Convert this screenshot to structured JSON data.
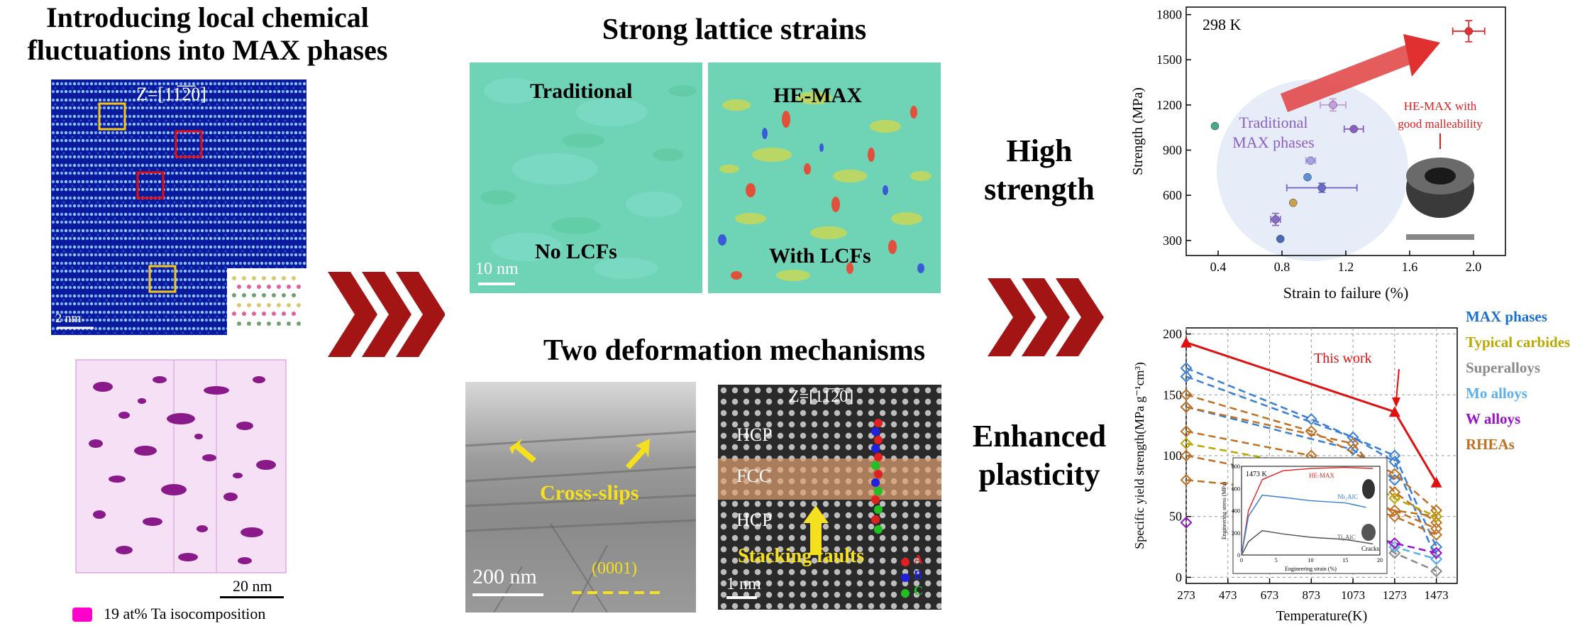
{
  "left": {
    "title_line1": "Introducing local chemical",
    "title_line2": "fluctuations into MAX phases",
    "zone_axis": "Z=[11̅2̅0]",
    "scale_2nm": "2 nm",
    "scale_20nm": "20 nm",
    "iso_legend": "19 at% Ta isocomposition",
    "colors": {
      "blue_bg": "#0a1a9c",
      "yellow_box": "#f5c518",
      "red_box": "#e01010",
      "iso_purple": "#8a1a8a",
      "magenta": "#ff00cc"
    }
  },
  "middle": {
    "strain_title": "Strong lattice strains",
    "traditional_label": "Traditional",
    "no_lcfs_label": "No LCFs",
    "hemax_label": "HE-MAX",
    "with_lcfs_label": "With LCFs",
    "scale_10nm": "10 nm",
    "deform_title": "Two deformation mechanisms",
    "cross_slips": "Cross-slips",
    "plane_0001": "(0001)",
    "scale_200nm": "200 nm",
    "zone_axis2": "Z=[11̅2̅0]",
    "hcp_top": "HCP",
    "fcc": "FCC",
    "hcp_bottom": "HCP",
    "stacking_faults": "Stacking faults",
    "scale_1nm": "1 nm",
    "legend_A": "A",
    "legend_B": "B",
    "legend_C": "C"
  },
  "arrows": {
    "color": "#a31515"
  },
  "right_text": {
    "high_line1": "High",
    "high_line2": "strength",
    "enh_line1": "Enhanced",
    "enh_line2": "plasticity"
  },
  "chart_data": [
    {
      "type": "scatter",
      "annotation_temp": "298 K",
      "xlabel": "Strain to failure (%)",
      "ylabel": "Strength (MPa)",
      "xlim": [
        0.2,
        2.2
      ],
      "ylim": [
        200,
        1850
      ],
      "xticks": [
        "0.4",
        "0.8",
        "1.2",
        "1.6",
        "2.0"
      ],
      "yticks": [
        "300",
        "600",
        "900",
        "1200",
        "1500",
        "1800"
      ],
      "traditional_label_line1": "Traditional",
      "traditional_label_line2": "MAX phases",
      "hemax_label_line1": "HE-MAX with",
      "hemax_label_line2": "good malleability",
      "points": [
        {
          "x": 0.38,
          "y": 1060,
          "color": "#4aa88a",
          "xerr": 0,
          "yerr": 0
        },
        {
          "x": 1.12,
          "y": 1200,
          "color": "#c79be0",
          "xerr": 0.08,
          "yerr": 40
        },
        {
          "x": 1.25,
          "y": 1040,
          "color": "#8a5fc2",
          "xerr": 0.06,
          "yerr": 0
        },
        {
          "x": 0.98,
          "y": 830,
          "color": "#a9a0e8",
          "xerr": 0.03,
          "yerr": 0
        },
        {
          "x": 0.96,
          "y": 720,
          "color": "#5b8fd8",
          "xerr": 0,
          "yerr": 0
        },
        {
          "x": 1.05,
          "y": 650,
          "color": "#6a6ac8",
          "xerr": 0.22,
          "yerr": 30
        },
        {
          "x": 0.87,
          "y": 550,
          "color": "#c8a050",
          "xerr": 0,
          "yerr": 0
        },
        {
          "x": 0.76,
          "y": 440,
          "color": "#8a6ac8",
          "xerr": 0.03,
          "yerr": 40
        },
        {
          "x": 0.79,
          "y": 310,
          "color": "#4a6ab8",
          "xerr": 0,
          "yerr": 0
        },
        {
          "x": 1.97,
          "y": 1690,
          "color": "#e03030",
          "xerr": 0.1,
          "yerr": 70
        }
      ]
    },
    {
      "type": "line",
      "xlabel": "Temperature(K)",
      "ylabel": "Specific yield strength(MPa g⁻¹cm³)",
      "xlim": [
        273,
        1573
      ],
      "ylim": [
        -5,
        205
      ],
      "xticks": [
        "273",
        "473",
        "673",
        "873",
        "1073",
        "1273",
        "1473"
      ],
      "yticks": [
        "0",
        "50",
        "100",
        "150",
        "200"
      ],
      "this_work_label": "This work",
      "legend": [
        {
          "name": "MAX phases",
          "color": "#1a6fd6"
        },
        {
          "name": "Typical carbides",
          "color": "#b8a800"
        },
        {
          "name": "Superalloys",
          "color": "#8a8a8a"
        },
        {
          "name": "Mo alloys",
          "color": "#5ab0e8"
        },
        {
          "name": "W alloys",
          "color": "#9a10c8"
        },
        {
          "name": "RHEAs",
          "color": "#c07020"
        }
      ],
      "this_work": {
        "x": [
          273,
          1273,
          1473
        ],
        "y": [
          193,
          136,
          78
        ],
        "color": "#e01010"
      },
      "series": [
        {
          "color": "#3a7fd6",
          "x": [
            273,
            873,
            1273,
            1473
          ],
          "y": [
            172,
            130,
            100,
            25
          ]
        },
        {
          "color": "#3a7fd6",
          "x": [
            273,
            1073,
            1273,
            1473
          ],
          "y": [
            165,
            115,
            95,
            15
          ]
        },
        {
          "color": "#3a7fd6",
          "x": [
            273,
            1073,
            1273
          ],
          "y": [
            140,
            105,
            80
          ]
        },
        {
          "color": "#c07020",
          "x": [
            273,
            873,
            1273,
            1473
          ],
          "y": [
            150,
            120,
            85,
            55
          ]
        },
        {
          "color": "#c07020",
          "x": [
            273,
            1073,
            1273,
            1473
          ],
          "y": [
            140,
            110,
            70,
            45
          ]
        },
        {
          "color": "#c07020",
          "x": [
            273,
            873,
            1073,
            1473
          ],
          "y": [
            120,
            100,
            60,
            50
          ]
        },
        {
          "color": "#c07020",
          "x": [
            273,
            873,
            1073,
            1273,
            1473
          ],
          "y": [
            100,
            80,
            65,
            55,
            40
          ]
        },
        {
          "color": "#c07020",
          "x": [
            273,
            873,
            1273,
            1473
          ],
          "y": [
            80,
            70,
            50,
            35
          ]
        },
        {
          "color": "#b8a800",
          "x": [
            273,
            1073,
            1273,
            1473
          ],
          "y": [
            110,
            85,
            65,
            50
          ]
        },
        {
          "color": "#8a8a8a",
          "x": [
            873,
            1073,
            1273,
            1473
          ],
          "y": [
            75,
            45,
            20,
            5
          ]
        },
        {
          "color": "#5ab0e8",
          "x": [
            1073,
            1273,
            1473
          ],
          "y": [
            45,
            25,
            15
          ]
        },
        {
          "color": "#9a10c8",
          "x": [
            1073,
            1273,
            1473
          ],
          "y": [
            38,
            28,
            20
          ]
        },
        {
          "color": "#9a10c8",
          "x": [
            273
          ],
          "y": [
            45
          ]
        }
      ],
      "inset": {
        "temp": "1473 K",
        "xlabel": "Engineering strain (%)",
        "ylabel": "Engineering stress (MPa)",
        "xticks": [
          "0",
          "5",
          "10",
          "15",
          "20"
        ],
        "yticks": [
          "0",
          "200",
          "400",
          "600",
          "800"
        ],
        "series": [
          {
            "name": "HE-MAX",
            "color": "#e03030",
            "x": [
              0,
              1,
              3,
              6,
              10,
              15,
              19
            ],
            "y": [
              0,
              400,
              680,
              760,
              780,
              790,
              780
            ]
          },
          {
            "name": "Nb₂AlC",
            "color": "#3a7fd6",
            "x": [
              0,
              1,
              3,
              6,
              10,
              15,
              18
            ],
            "y": [
              0,
              350,
              540,
              520,
              490,
              470,
              430
            ]
          },
          {
            "name": "Ti₂AlC",
            "color": "#555555",
            "x": [
              0,
              1,
              3,
              6,
              10,
              15,
              19
            ],
            "y": [
              0,
              120,
              220,
              190,
              160,
              140,
              100
            ]
          }
        ],
        "cracks_label": "Cracks"
      }
    }
  ]
}
